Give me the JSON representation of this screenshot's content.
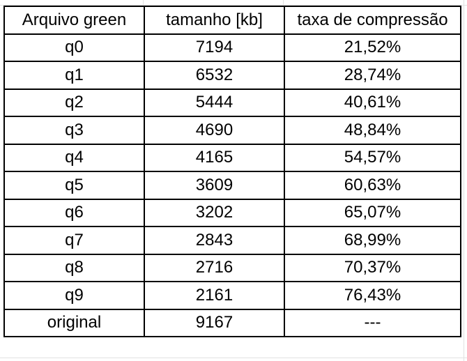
{
  "table": {
    "headers": [
      "Arquivo green",
      "tamanho [kb]",
      "taxa de compressão"
    ],
    "rows": [
      [
        "q0",
        "7194",
        "21,52%"
      ],
      [
        "q1",
        "6532",
        "28,74%"
      ],
      [
        "q2",
        "5444",
        "40,61%"
      ],
      [
        "q3",
        "4690",
        "48,84%"
      ],
      [
        "q4",
        "4165",
        "54,57%"
      ],
      [
        "q5",
        "3609",
        "60,63%"
      ],
      [
        "q6",
        "3202",
        "65,07%"
      ],
      [
        "q7",
        "2843",
        "68,99%"
      ],
      [
        "q8",
        "2716",
        "70,37%"
      ],
      [
        "q9",
        "2161",
        "76,43%"
      ],
      [
        "original",
        "9167",
        "---"
      ]
    ]
  },
  "colors": {
    "border": "#000000",
    "text": "#000000",
    "background": "#ffffff",
    "gridline": "#e2e2e2"
  }
}
